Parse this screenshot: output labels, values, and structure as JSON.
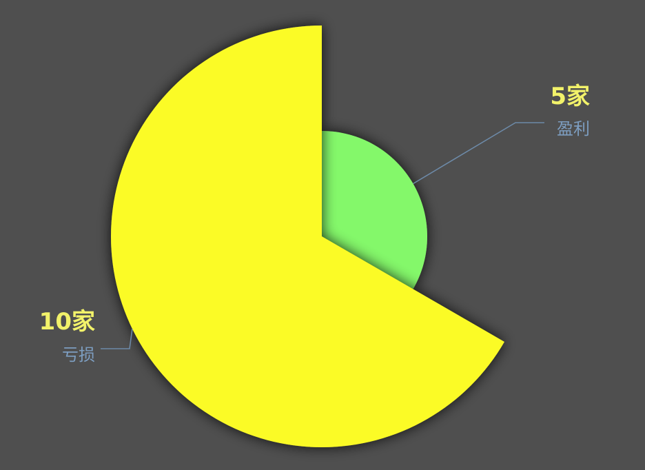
{
  "chart_data": {
    "type": "pie",
    "variant": "rose",
    "start_angle_deg": 90,
    "direction": "clockwise",
    "unit": "家",
    "slices": [
      {
        "name": "盈利",
        "value": 5,
        "value_label": "5家",
        "color": "#84f86b"
      },
      {
        "name": "亏损",
        "value": 10,
        "value_label": "10家",
        "color": "#fbfb26"
      }
    ],
    "label_colors": {
      "value": "#f2f26a",
      "name": "#7d9ec1",
      "leader_line": "#6d8aa8"
    },
    "background": "#4f4f4f",
    "legend": "none"
  }
}
